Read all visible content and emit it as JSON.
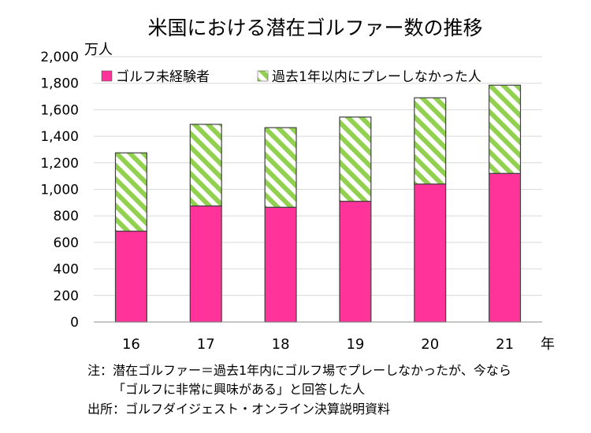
{
  "chart_data": {
    "type": "bar",
    "stacked": true,
    "title": "米国における潜在ゴルファー数の推移",
    "ylabel": "万人",
    "xlabel": "年",
    "categories": [
      "16",
      "17",
      "18",
      "19",
      "20",
      "21"
    ],
    "series": [
      {
        "name": "ゴルフ未経験者",
        "values": [
          685,
          875,
          865,
          910,
          1040,
          1120
        ],
        "color": "#ff3399",
        "pattern": "solid"
      },
      {
        "name": "過去1年以内にプレーしなかった人",
        "values": [
          590,
          615,
          600,
          635,
          650,
          665
        ],
        "color": "#92d050",
        "pattern": "diagonal-stripes"
      }
    ],
    "ylim": [
      0,
      2000
    ],
    "yticks": [
      "0",
      "200",
      "400",
      "600",
      "800",
      "1,000",
      "1,200",
      "1,400",
      "1,600",
      "1,800",
      "2,000"
    ],
    "legend_position": "top"
  },
  "notes": {
    "line1": "注：潜在ゴルファー＝過去1年内にゴルフ場でプレーしなかったが、今なら",
    "line2": "「ゴルフに非常に興味がある」と回答した人",
    "source": "出所：ゴルフダイジェスト・オンライン決算説明資料"
  }
}
